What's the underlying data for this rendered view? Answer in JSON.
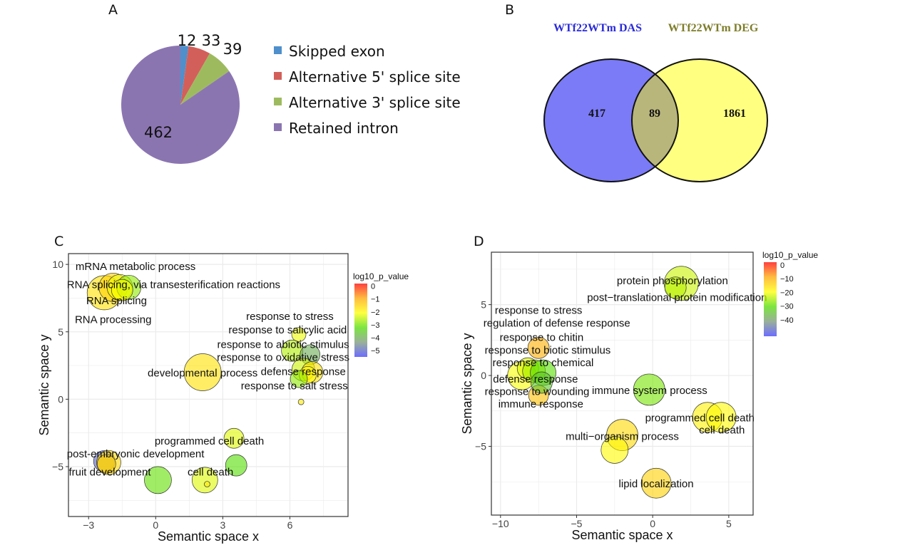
{
  "panels": {
    "a": "A",
    "b": "B",
    "c": "C",
    "d": "D"
  },
  "chart_data": [
    {
      "type": "pie",
      "panel": "A",
      "categories": [
        "Skipped exon",
        "Alternative 5' splice site",
        "Alternative 3' splice site",
        "Retained intron"
      ],
      "values": [
        12,
        33,
        39,
        462
      ],
      "colors": [
        "#4f8fcb",
        "#d35f5a",
        "#9dbb5e",
        "#8b75b1"
      ],
      "legend_position": "right"
    },
    {
      "type": "venn",
      "panel": "B",
      "sets": [
        {
          "name": "WTf22WTm DAS",
          "only": 417,
          "color": "#7b7bf7",
          "title_color": "#2a2ad8"
        },
        {
          "name": "WTf22WTm DEG",
          "only": 1861,
          "color": "#ffff80",
          "title_color": "#7d7d2a"
        }
      ],
      "overlap": 89,
      "overlap_color": "#b9b67c"
    },
    {
      "type": "scatter",
      "panel": "C",
      "xlabel": "Semantic space x",
      "ylabel": "Semantic space y",
      "xlim": [
        -3.9,
        8.6
      ],
      "ylim": [
        -8.7,
        10.8
      ],
      "xticks": [
        -3,
        0,
        3,
        6
      ],
      "yticks": [
        -5,
        0,
        5,
        10
      ],
      "grid": true,
      "colorbar": {
        "title": "log10_p_value",
        "ticks": [
          0,
          -1,
          -2,
          -3,
          -4,
          -5
        ],
        "range": [
          -5.5,
          0.2
        ]
      },
      "points": [
        {
          "x": -2.3,
          "y": 7.9,
          "size": 24,
          "value": -1.7
        },
        {
          "x": -1.9,
          "y": 8.3,
          "size": 20,
          "value": -1.5
        },
        {
          "x": -1.6,
          "y": 8.3,
          "size": 18,
          "value": -2.2
        },
        {
          "x": -1.2,
          "y": 8.3,
          "size": 17,
          "value": -2.8
        },
        {
          "x": -1.5,
          "y": 8.1,
          "size": 15,
          "value": -2.1
        },
        {
          "x": 2.1,
          "y": 2.0,
          "size": 26,
          "value": -1.7
        },
        {
          "x": 6.4,
          "y": 4.8,
          "size": 10,
          "value": -2.2
        },
        {
          "x": 6.1,
          "y": 3.6,
          "size": 15,
          "value": -2.6
        },
        {
          "x": 6.9,
          "y": 3.3,
          "size": 14,
          "value": -4.0
        },
        {
          "x": 6.6,
          "y": 2.2,
          "size": 16,
          "value": -2.4
        },
        {
          "x": 7.0,
          "y": 2.0,
          "size": 15,
          "value": -1.7
        },
        {
          "x": 6.8,
          "y": 1.8,
          "size": 12,
          "value": -2.0
        },
        {
          "x": 6.4,
          "y": 1.5,
          "size": 12,
          "value": -2.8
        },
        {
          "x": 6.5,
          "y": -0.2,
          "size": 4,
          "value": -1.8
        },
        {
          "x": 3.5,
          "y": -2.9,
          "size": 14,
          "value": -2.3
        },
        {
          "x": 3.6,
          "y": -4.9,
          "size": 15,
          "value": -3.2
        },
        {
          "x": 2.2,
          "y": -6.0,
          "size": 18,
          "value": -2.3
        },
        {
          "x": 2.3,
          "y": -6.3,
          "size": 4,
          "value": -1.8
        },
        {
          "x": 0.1,
          "y": -6.0,
          "size": 19,
          "value": -3.1
        },
        {
          "x": -2.3,
          "y": -4.6,
          "size": 15,
          "value": -5.0
        },
        {
          "x": -2.1,
          "y": -4.7,
          "size": 17,
          "value": -1.6
        },
        {
          "x": -2.2,
          "y": -4.8,
          "size": 13,
          "value": -1.5
        }
      ],
      "labels": [
        {
          "text": "mRNA metabolic process",
          "x": -0.9,
          "y": 9.85
        },
        {
          "text": "RNA splicing, via transesterification reactions",
          "x": 0.8,
          "y": 8.5
        },
        {
          "text": "RNA splicing",
          "x": -1.75,
          "y": 7.3
        },
        {
          "text": "RNA processing",
          "x": -1.9,
          "y": 5.9
        },
        {
          "text": "response to stress",
          "x": 6.0,
          "y": 6.15
        },
        {
          "text": "response to salicylic acid",
          "x": 5.9,
          "y": 5.15
        },
        {
          "text": "response to abiotic stimulus",
          "x": 5.7,
          "y": 4.05
        },
        {
          "text": "response to oxidative stress",
          "x": 5.7,
          "y": 3.1
        },
        {
          "text": "developmental process",
          "x": 2.1,
          "y": 1.95
        },
        {
          "text": "defense response",
          "x": 6.6,
          "y": 2.05
        },
        {
          "text": "response to salt stress",
          "x": 6.2,
          "y": 1.0
        },
        {
          "text": "programmed cell death",
          "x": 2.4,
          "y": -3.1
        },
        {
          "text": "post-embryonic development",
          "x": -0.9,
          "y": -4.05
        },
        {
          "text": "fruit development",
          "x": -2.05,
          "y": -5.4
        },
        {
          "text": "cell death",
          "x": 2.45,
          "y": -5.4
        }
      ]
    },
    {
      "type": "scatter",
      "panel": "D",
      "xlabel": "Semantic space x",
      "ylabel": "Semantic space y",
      "xlim": [
        -10.6,
        6.6
      ],
      "ylim": [
        -9.85,
        8.7
      ],
      "xticks": [
        -10,
        -5,
        0,
        5
      ],
      "yticks": [
        -5,
        0,
        5
      ],
      "grid": true,
      "colorbar": {
        "title": "log10_p_value",
        "ticks": [
          0,
          -10,
          -20,
          -30,
          -40
        ],
        "range": [
          -52,
          2
        ]
      },
      "points": [
        {
          "x": 1.88,
          "y": 6.5,
          "size": 24,
          "value": -23
        },
        {
          "x": 1.5,
          "y": 6.2,
          "size": 15,
          "value": -24
        },
        {
          "x": -8.6,
          "y": 0.0,
          "size": 20,
          "value": -20
        },
        {
          "x": -8.2,
          "y": 0.5,
          "size": 15,
          "value": -22
        },
        {
          "x": -7.8,
          "y": 0.3,
          "size": 16,
          "value": -25
        },
        {
          "x": -7.5,
          "y": 1.95,
          "size": 15,
          "value": -10
        },
        {
          "x": -7.5,
          "y": -1.4,
          "size": 14,
          "value": -12
        },
        {
          "x": -7.2,
          "y": 0.2,
          "size": 18,
          "value": -30
        },
        {
          "x": -7.3,
          "y": -0.5,
          "size": 15,
          "value": -34
        },
        {
          "x": -0.23,
          "y": -1.0,
          "size": 22,
          "value": -28
        },
        {
          "x": 3.6,
          "y": -2.95,
          "size": 21,
          "value": -18
        },
        {
          "x": 4.5,
          "y": -2.95,
          "size": 21,
          "value": -19
        },
        {
          "x": -2.0,
          "y": -4.2,
          "size": 22,
          "value": -15
        },
        {
          "x": -2.5,
          "y": -5.25,
          "size": 19,
          "value": -19
        },
        {
          "x": 0.23,
          "y": -7.6,
          "size": 21,
          "value": -14
        }
      ],
      "labels": [
        {
          "text": "protein phosphorylation",
          "x": 1.3,
          "y": 6.7
        },
        {
          "text": "post−translational protein modification",
          "x": 1.6,
          "y": 5.5
        },
        {
          "text": "response to stress",
          "x": -7.5,
          "y": 4.6
        },
        {
          "text": "regulation of defense response",
          "x": -6.3,
          "y": 3.8
        },
        {
          "text": "response to chitin",
          "x": -7.3,
          "y": 2.7
        },
        {
          "text": "response to biotic stimulus",
          "x": -6.9,
          "y": 2.0
        },
        {
          "text": "response to chemical",
          "x": -7.2,
          "y": 1.1
        },
        {
          "text": "defense response",
          "x": -7.7,
          "y": -0.25
        },
        {
          "text": "response to wounding",
          "x": -7.6,
          "y": -0.87
        },
        {
          "text": "immune response",
          "x": -7.35,
          "y": -1.6
        },
        {
          "text": "immune system process",
          "x": -0.2,
          "y": -1.05
        },
        {
          "text": "programmed cell death",
          "x": 3.1,
          "y": -2.98
        },
        {
          "text": "cell death",
          "x": 4.55,
          "y": -2.98
        },
        {
          "text": "multi−organism process",
          "x": -2.0,
          "y": -4.3
        },
        {
          "text": "lipid localization",
          "x": 0.23,
          "y": -7.65
        }
      ]
    }
  ]
}
